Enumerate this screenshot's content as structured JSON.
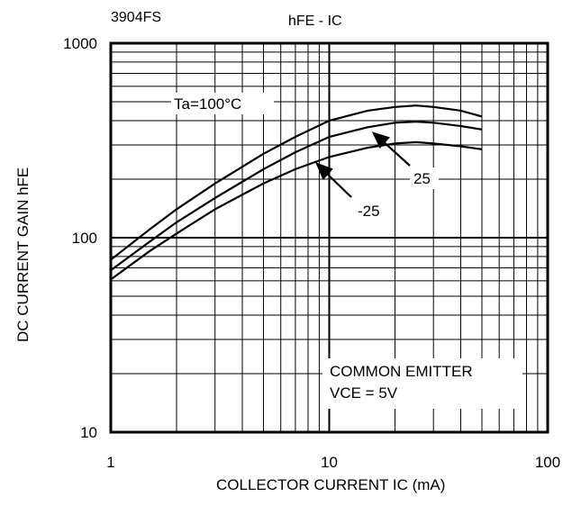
{
  "chart_data": {
    "type": "line",
    "part_number": "3904FS",
    "title": "hFE - IC",
    "xlabel": "COLLECTOR CURRENT  IC   (mA)",
    "ylabel": "DC CURRENT GAIN  hFE",
    "xscale": "log",
    "yscale": "log",
    "xlim": [
      1,
      100
    ],
    "ylim": [
      10,
      1000
    ],
    "xticks": [
      "1",
      "10",
      "100"
    ],
    "yticks": [
      "10",
      "100",
      "1000"
    ],
    "grid": true,
    "series": [
      {
        "name": "Ta=100°C",
        "x": [
          1,
          1.5,
          2,
          3,
          5,
          7,
          10,
          15,
          20,
          25,
          30,
          40,
          50
        ],
        "y": [
          77,
          110,
          140,
          190,
          270,
          330,
          400,
          450,
          470,
          478,
          470,
          450,
          420
        ]
      },
      {
        "name": "25",
        "x": [
          1,
          1.5,
          2,
          3,
          5,
          7,
          10,
          15,
          20,
          25,
          30,
          40,
          50
        ],
        "y": [
          68,
          95,
          120,
          160,
          225,
          275,
          330,
          370,
          390,
          395,
          390,
          375,
          360
        ]
      },
      {
        "name": "-25",
        "x": [
          1,
          1.5,
          2,
          3,
          5,
          7,
          10,
          15,
          20,
          25,
          30,
          40,
          50
        ],
        "y": [
          61,
          85,
          105,
          140,
          190,
          225,
          260,
          290,
          305,
          310,
          305,
          295,
          285
        ]
      }
    ],
    "annotations": [
      "Ta=100°C",
      "25",
      "-25",
      "COMMON EMITTER",
      "VCE = 5V"
    ]
  }
}
